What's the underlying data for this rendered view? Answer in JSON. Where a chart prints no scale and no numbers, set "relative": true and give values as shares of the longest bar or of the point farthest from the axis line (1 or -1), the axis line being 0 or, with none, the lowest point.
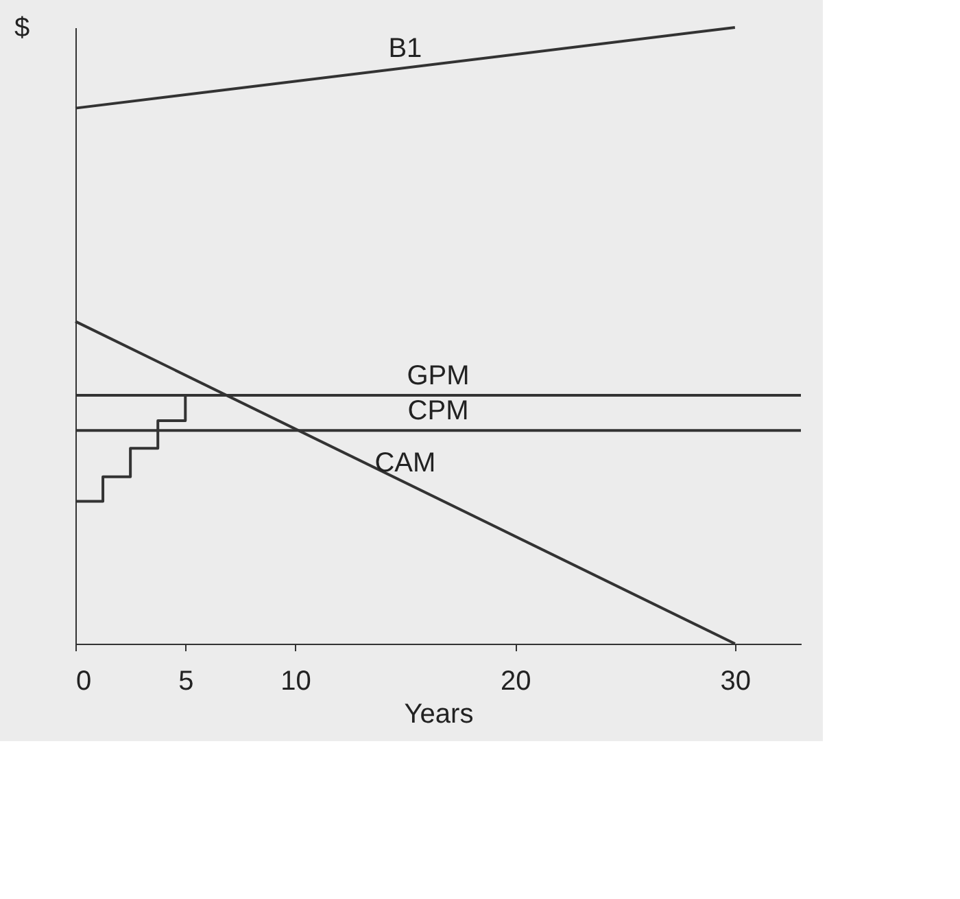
{
  "chart_data": {
    "type": "line",
    "relative": true,
    "xlabel": "Years",
    "ylabel": "$",
    "xlim": [
      0,
      33
    ],
    "xticks": [
      0,
      5,
      10,
      20,
      30
    ],
    "grid": false,
    "marker": "none",
    "line_style": "solid",
    "series": [
      {
        "name": "B1",
        "color": "#333333",
        "x": [
          0,
          30
        ],
        "values": [
          0.869,
          1.0
        ]
      },
      {
        "name": "GPM",
        "color": "#333333",
        "x": [
          0,
          33
        ],
        "values": [
          0.403,
          0.403
        ]
      },
      {
        "name": "CPM",
        "color": "#333333",
        "x": [
          0,
          33
        ],
        "values": [
          0.346,
          0.346
        ]
      },
      {
        "name": "CAM",
        "color": "#333333",
        "x": [
          0,
          30
        ],
        "values": [
          0.523,
          0.0
        ]
      },
      {
        "type": "step",
        "color": "#333333",
        "x": [
          0,
          1.25,
          2.5,
          3.75,
          5
        ],
        "values": [
          0.231,
          0.271,
          0.317,
          0.362,
          0.403
        ]
      }
    ]
  }
}
